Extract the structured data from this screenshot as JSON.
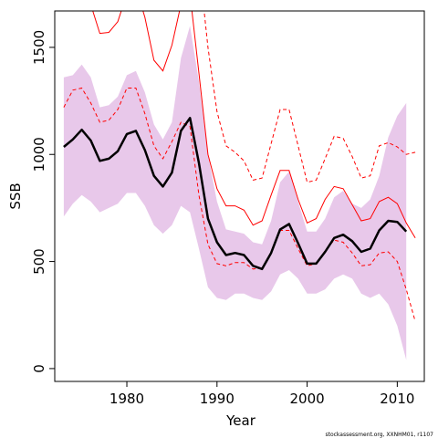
{
  "chart_data": {
    "type": "line",
    "title": "",
    "xlabel": "Year",
    "ylabel": "SSB",
    "footnote": "stockassessment.org, XXNHM01, r1107",
    "xlim": [
      1972,
      2013
    ],
    "ylim": [
      -60,
      1670
    ],
    "x_ticks": [
      1980,
      1990,
      2000,
      2010
    ],
    "y_ticks": [
      0,
      500,
      1000,
      1500
    ],
    "grid": false,
    "legend": "none",
    "colors": {
      "band": "#e8c8ea",
      "estimate": "#000000",
      "reference": "#ff0000"
    },
    "band": {
      "x": [
        1973,
        1974,
        1975,
        1976,
        1977,
        1978,
        1979,
        1980,
        1981,
        1982,
        1983,
        1984,
        1985,
        1986,
        1987,
        1988,
        1989,
        1990,
        1991,
        1992,
        1993,
        1994,
        1995,
        1996,
        1997,
        1998,
        1999,
        2000,
        2001,
        2002,
        2003,
        2004,
        2005,
        2006,
        2007,
        2008,
        2009,
        2010,
        2011
      ],
      "upper": [
        1360,
        1370,
        1420,
        1360,
        1220,
        1230,
        1270,
        1370,
        1390,
        1290,
        1140,
        1070,
        1150,
        1450,
        1600,
        1340,
        1000,
        780,
        650,
        640,
        630,
        590,
        580,
        690,
        870,
        920,
        780,
        640,
        640,
        700,
        800,
        830,
        770,
        750,
        790,
        900,
        1080,
        1180,
        1240
      ],
      "lower": [
        710,
        770,
        810,
        780,
        730,
        750,
        770,
        820,
        820,
        760,
        670,
        630,
        670,
        760,
        730,
        560,
        380,
        330,
        320,
        350,
        350,
        330,
        320,
        360,
        440,
        460,
        420,
        350,
        350,
        370,
        420,
        440,
        420,
        350,
        330,
        350,
        300,
        200,
        40
      ]
    },
    "series": [
      {
        "style": "solid-thick",
        "x": [
          1973,
          1974,
          1975,
          1976,
          1977,
          1978,
          1979,
          1980,
          1981,
          1982,
          1983,
          1984,
          1985,
          1986,
          1987,
          1988,
          1989,
          1990,
          1991,
          1992,
          1993,
          1994,
          1995,
          1996,
          1997,
          1998,
          1999,
          2000,
          2001,
          2002,
          2003,
          2004,
          2005,
          2006,
          2007,
          2008,
          2009,
          2010,
          2011
        ],
        "y": [
          1035,
          1070,
          1115,
          1065,
          970,
          980,
          1015,
          1095,
          1110,
          1020,
          900,
          850,
          915,
          1110,
          1170,
          960,
          700,
          590,
          530,
          540,
          530,
          480,
          465,
          540,
          650,
          675,
          585,
          490,
          490,
          545,
          610,
          625,
          595,
          545,
          560,
          645,
          690,
          685,
          640
        ]
      },
      {
        "style": "solid-thin",
        "x": [
          1975,
          1976,
          1977,
          1978,
          1979,
          1980,
          1981,
          1982,
          1983,
          1984,
          1985,
          1986,
          1987,
          1988,
          1989,
          1990,
          1991,
          1992,
          1993,
          1994,
          1995,
          1996,
          1997,
          1998,
          1999,
          2000,
          2001,
          2002,
          2003,
          2004,
          2005,
          2006,
          2007,
          2008,
          2009,
          2010,
          2011,
          2012
        ],
        "y": [
          1950,
          1700,
          1565,
          1570,
          1620,
          1750,
          1780,
          1640,
          1440,
          1390,
          1510,
          1700,
          1750,
          1380,
          1000,
          840,
          760,
          760,
          740,
          670,
          690,
          810,
          925,
          925,
          790,
          680,
          700,
          790,
          850,
          840,
          765,
          690,
          700,
          780,
          800,
          770,
          680,
          610
        ]
      },
      {
        "style": "dashed",
        "x": [
          1973,
          1974,
          1975,
          1976,
          1977,
          1978,
          1979,
          1980,
          1981,
          1982,
          1983,
          1984,
          1985,
          1986,
          1987,
          1988,
          1989,
          1990,
          1991,
          1992,
          1993,
          1994,
          1995,
          1996,
          1997,
          1998,
          1999,
          2000,
          2001,
          2002,
          2003,
          2004,
          2005,
          2006,
          2007,
          2008,
          2009,
          2010,
          2011,
          2012
        ],
        "y": [
          1220,
          1300,
          1310,
          1240,
          1150,
          1160,
          1210,
          1310,
          1310,
          1190,
          1040,
          980,
          1060,
          1150,
          1130,
          810,
          580,
          490,
          480,
          495,
          495,
          465,
          470,
          540,
          645,
          645,
          560,
          480,
          490,
          550,
          600,
          590,
          540,
          480,
          485,
          540,
          545,
          500,
          370,
          220
        ]
      },
      {
        "style": "dashed",
        "x": [
          1987,
          1988,
          1989,
          1990,
          1991,
          1992,
          1993,
          1994,
          1995,
          1996,
          1997,
          1998,
          1999,
          2000,
          2001,
          2002,
          2003,
          2004,
          2005,
          2006,
          2007,
          2008,
          2009,
          2010,
          2011,
          2012
        ],
        "y": [
          2400,
          1900,
          1500,
          1200,
          1040,
          1010,
          970,
          880,
          890,
          1050,
          1210,
          1210,
          1040,
          870,
          880,
          980,
          1085,
          1075,
          990,
          890,
          900,
          1040,
          1055,
          1035,
          1000,
          1010
        ]
      }
    ]
  }
}
